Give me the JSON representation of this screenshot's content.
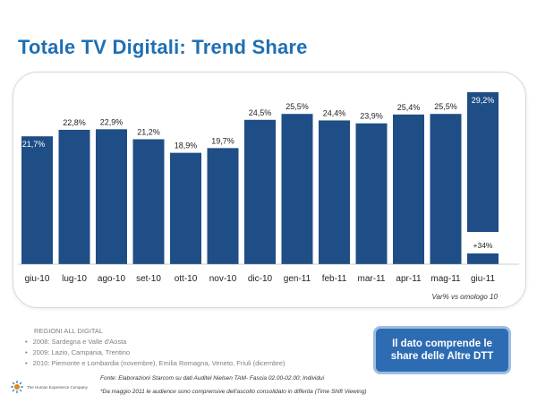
{
  "page": {
    "title": "Totale TV Digitali: Trend Share",
    "var_note": "Var% vs omologo 10",
    "regions": {
      "heading": "REGIONI ALL DIGITAL",
      "items": [
        "2008: Sardegna e Valle d'Aosta",
        "2009: Lazio, Campania, Trentino",
        "2010: Piemonte e Lombardia (novembre), Emilia Romagna, Veneto, Friuli (dicembre)"
      ]
    },
    "callout": {
      "line1": "Il dato comprende le",
      "line2": "share delle Altre DTT"
    },
    "source": "Fonte: Elaborazioni Starcom su dati Auditel Nielsen TAM- Fascia 02.00-02.00; Individui",
    "footnote": "*Da maggio 2011 le audience sono comprensive dell'ascolto consolidato in differita (Time Shift Viewing)",
    "logo_text": "The Human Experience Company",
    "colors": {
      "bar": "#1f4e86",
      "title": "#1f6fb3",
      "callout": "#2d6cb3"
    }
  },
  "chart_data": {
    "type": "bar",
    "title": "Totale TV Digitali: Trend Share",
    "categories": [
      "giu-10",
      "lug-10",
      "ago-10",
      "set-10",
      "ott-10",
      "nov-10",
      "dic-10",
      "gen-11",
      "feb-11",
      "mar-11",
      "apr-11",
      "mag-11",
      "giu-11"
    ],
    "values": [
      21.7,
      22.8,
      22.9,
      21.2,
      18.9,
      19.7,
      24.5,
      25.5,
      24.4,
      23.9,
      25.4,
      25.5,
      29.2
    ],
    "labels": [
      "21,7%",
      "22,8%",
      "22,9%",
      "21,2%",
      "18,9%",
      "19,7%",
      "24,5%",
      "25,5%",
      "24,4%",
      "23,9%",
      "25,4%",
      "25,5%",
      "29,2%"
    ],
    "annotation": {
      "category": "giu-11",
      "text": "+34%"
    },
    "grid": false,
    "legend": "none"
  }
}
